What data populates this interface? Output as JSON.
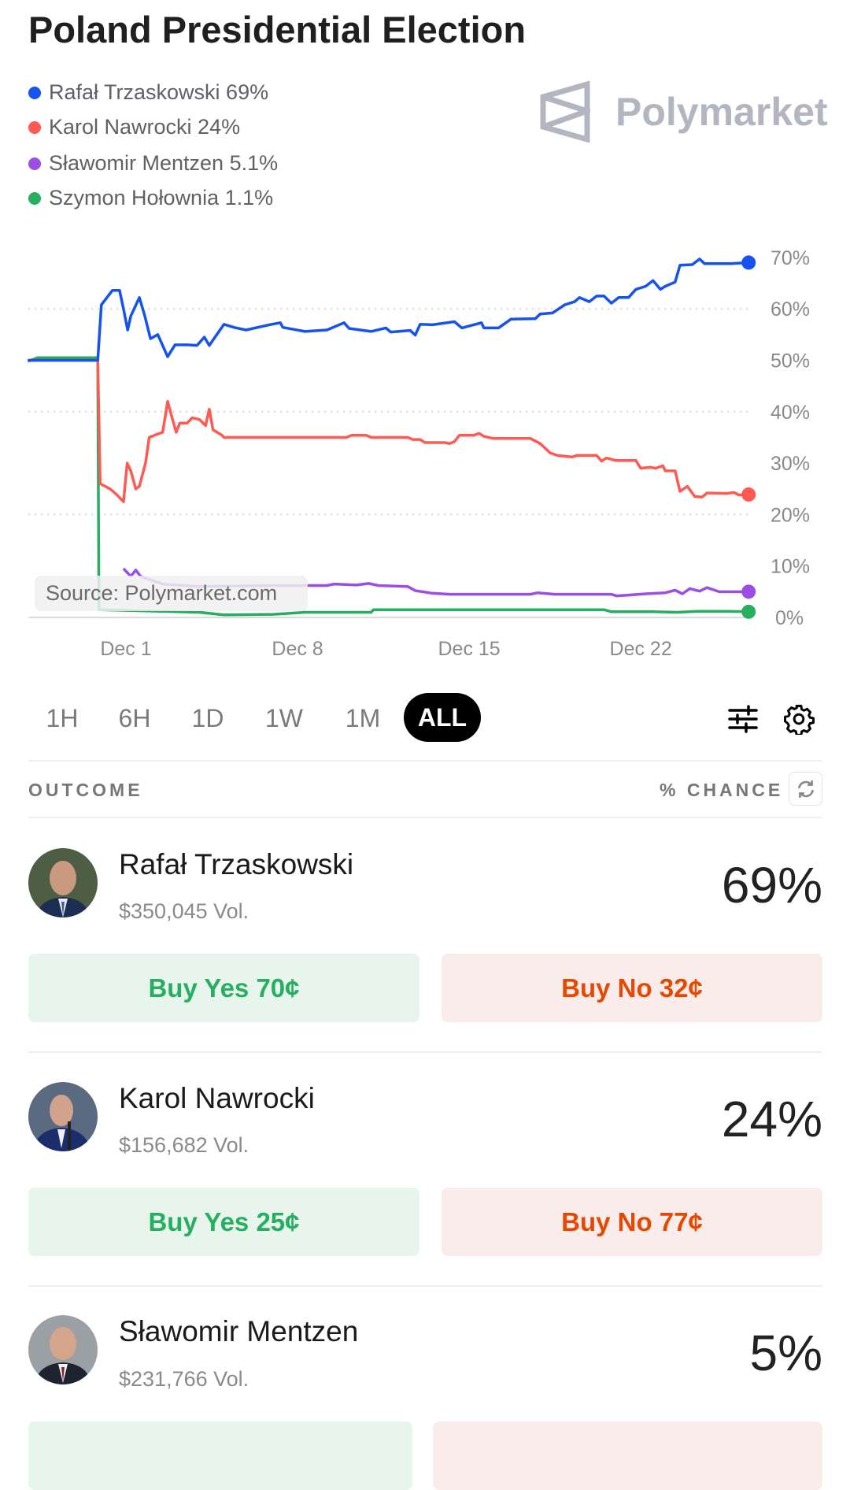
{
  "title": "Poland Presidential Election",
  "brand": "Polymarket",
  "source": "Source: Polymarket.com",
  "legend": [
    {
      "label": "Rafał Trzaskowski 69%",
      "color": "#1652f0"
    },
    {
      "label": "Karol Nawrocki 24%",
      "color": "#ff5952"
    },
    {
      "label": "Sławomir Mentzen 5.1%",
      "color": "#9b4ee6"
    },
    {
      "label": "Szymon Hołownia 1.1%",
      "color": "#27ae60"
    }
  ],
  "ranges": [
    "1H",
    "6H",
    "1D",
    "1W",
    "1M",
    "ALL"
  ],
  "active_range": "ALL",
  "table_header": {
    "outcome": "OUTCOME",
    "chance": "% CHANCE"
  },
  "outcomes": [
    {
      "name": "Rafał Trzaskowski",
      "volume": "$350,045 Vol.",
      "chance": "69%",
      "buy_yes": "Buy Yes 70¢",
      "buy_no": "Buy No 32¢"
    },
    {
      "name": "Karol Nawrocki",
      "volume": "$156,682 Vol.",
      "chance": "24%",
      "buy_yes": "Buy Yes 25¢",
      "buy_no": "Buy No 77¢"
    },
    {
      "name": "Sławomir Mentzen",
      "volume": "$231,766 Vol.",
      "chance": "5%",
      "buy_yes": "",
      "buy_no": ""
    }
  ],
  "chart_data": {
    "type": "line",
    "x_unit": "days relative to Dec 1",
    "xlim": [
      -4,
      25.5
    ],
    "ylim": [
      0,
      70
    ],
    "yticks": [
      "0%",
      "10%",
      "20%",
      "30%",
      "40%",
      "50%",
      "60%",
      "70%"
    ],
    "ytick_values": [
      0,
      10,
      20,
      30,
      40,
      50,
      60,
      70
    ],
    "xticks": [
      "Dec 1",
      "Dec 8",
      "Dec 15",
      "Dec 22"
    ],
    "xtick_values": [
      0,
      7,
      14,
      21
    ],
    "gridlines": [
      20,
      40,
      60
    ],
    "series": [
      {
        "name": "Rafał Trzaskowski",
        "color": "#1652f0",
        "points": [
          [
            -4,
            50
          ],
          [
            -1.15,
            50
          ],
          [
            -1.0,
            60.8
          ],
          [
            -0.55,
            63.6
          ],
          [
            -0.26,
            63.6
          ],
          [
            -0.1,
            60
          ],
          [
            0.07,
            55.9
          ],
          [
            0.2,
            58.6
          ],
          [
            0.55,
            62.2
          ],
          [
            0.77,
            58.6
          ],
          [
            1.0,
            54.2
          ],
          [
            1.3,
            55
          ],
          [
            1.7,
            50.7
          ],
          [
            2.0,
            53
          ],
          [
            2.5,
            53
          ],
          [
            2.9,
            52.9
          ],
          [
            3.2,
            54.5
          ],
          [
            3.4,
            52.9
          ],
          [
            4.0,
            57
          ],
          [
            4.4,
            56.4
          ],
          [
            4.9,
            55.9
          ],
          [
            5.85,
            56.9
          ],
          [
            6.3,
            57.3
          ],
          [
            6.4,
            56.4
          ],
          [
            7.3,
            55.6
          ],
          [
            8.2,
            55.9
          ],
          [
            8.9,
            57.3
          ],
          [
            9.1,
            56.2
          ],
          [
            10,
            55.6
          ],
          [
            10.6,
            56.3
          ],
          [
            10.8,
            55.5
          ],
          [
            11.6,
            55.8
          ],
          [
            11.8,
            54.9
          ],
          [
            12.0,
            57
          ],
          [
            12.5,
            56.9
          ],
          [
            13.4,
            57.5
          ],
          [
            13.7,
            56.3
          ],
          [
            14.5,
            57.3
          ],
          [
            14.6,
            56.3
          ],
          [
            15.2,
            56.3
          ],
          [
            15.7,
            58
          ],
          [
            16.7,
            58.1
          ],
          [
            16.9,
            59
          ],
          [
            17.4,
            59.2
          ],
          [
            17.9,
            60.8
          ],
          [
            18.3,
            61.4
          ],
          [
            18.5,
            62.2
          ],
          [
            18.9,
            61.4
          ],
          [
            19.2,
            62.5
          ],
          [
            19.5,
            62.5
          ],
          [
            19.8,
            61.1
          ],
          [
            20.1,
            62.2
          ],
          [
            20.5,
            62.2
          ],
          [
            20.8,
            63.8
          ],
          [
            21.2,
            64.4
          ],
          [
            21.5,
            65.5
          ],
          [
            21.8,
            63.8
          ],
          [
            22.0,
            64.4
          ],
          [
            22.4,
            65.2
          ],
          [
            22.6,
            68.5
          ],
          [
            23.1,
            68.6
          ],
          [
            23.4,
            69.7
          ],
          [
            23.6,
            68.8
          ],
          [
            24.7,
            68.8
          ],
          [
            25.4,
            69
          ]
        ]
      },
      {
        "name": "Karol Nawrocki",
        "color": "#ff5952",
        "points": [
          [
            -4,
            50
          ],
          [
            -1.15,
            50
          ],
          [
            -1.05,
            26
          ],
          [
            -0.85,
            25.5
          ],
          [
            -0.65,
            25
          ],
          [
            -0.4,
            24
          ],
          [
            -0.1,
            22.5
          ],
          [
            0.05,
            30
          ],
          [
            0.2,
            28.5
          ],
          [
            0.4,
            25
          ],
          [
            0.55,
            25.5
          ],
          [
            0.8,
            30
          ],
          [
            0.95,
            35
          ],
          [
            1.2,
            35.5
          ],
          [
            1.5,
            36
          ],
          [
            1.7,
            42
          ],
          [
            1.9,
            38.5
          ],
          [
            2.05,
            36
          ],
          [
            2.2,
            37.8
          ],
          [
            2.5,
            37.8
          ],
          [
            2.7,
            38.8
          ],
          [
            3.0,
            38.5
          ],
          [
            3.25,
            37.3
          ],
          [
            3.4,
            40.5
          ],
          [
            3.55,
            36.5
          ],
          [
            3.9,
            35.5
          ],
          [
            4.0,
            35
          ],
          [
            9.0,
            35
          ],
          [
            9.2,
            35.4
          ],
          [
            9.8,
            35.4
          ],
          [
            10,
            35
          ],
          [
            11.5,
            35
          ],
          [
            11.7,
            34.6
          ],
          [
            12.0,
            34.6
          ],
          [
            12.2,
            34
          ],
          [
            13.0,
            34
          ],
          [
            13.2,
            33.8
          ],
          [
            13.4,
            34.2
          ],
          [
            13.6,
            35.4
          ],
          [
            14.2,
            35.4
          ],
          [
            14.4,
            35.8
          ],
          [
            14.6,
            35.2
          ],
          [
            15.0,
            34.8
          ],
          [
            16.5,
            34.8
          ],
          [
            16.9,
            33.8
          ],
          [
            17.3,
            32
          ],
          [
            17.6,
            31.5
          ],
          [
            18.2,
            31.2
          ],
          [
            18.4,
            31.5
          ],
          [
            19.2,
            31.5
          ],
          [
            19.4,
            30.4
          ],
          [
            19.6,
            31
          ],
          [
            20.0,
            30.5
          ],
          [
            20.8,
            30.5
          ],
          [
            21.0,
            29
          ],
          [
            21.4,
            29.2
          ],
          [
            21.6,
            29
          ],
          [
            21.9,
            29.5
          ],
          [
            22.0,
            28.5
          ],
          [
            22.4,
            28.5
          ],
          [
            22.6,
            24.5
          ],
          [
            22.9,
            25.5
          ],
          [
            23.2,
            23.5
          ],
          [
            23.5,
            23.4
          ],
          [
            23.7,
            24.2
          ],
          [
            24.5,
            24.1
          ],
          [
            24.8,
            24.3
          ],
          [
            25.0,
            23.8
          ],
          [
            25.4,
            23.9
          ]
        ]
      },
      {
        "name": "Sławomir Mentzen",
        "color": "#9b4ee6",
        "points": [
          [
            -0.1,
            9.5
          ],
          [
            0.2,
            8
          ],
          [
            0.4,
            9.2
          ],
          [
            0.6,
            8
          ],
          [
            1.5,
            6.5
          ],
          [
            3,
            6
          ],
          [
            5.9,
            6.2
          ],
          [
            8.2,
            6.2
          ],
          [
            8.5,
            6.5
          ],
          [
            9.4,
            6.3
          ],
          [
            9.9,
            6.6
          ],
          [
            10.3,
            6.2
          ],
          [
            11.5,
            6.0
          ],
          [
            11.8,
            5.2
          ],
          [
            12.5,
            4.7
          ],
          [
            13.2,
            4.5
          ],
          [
            16.5,
            4.5
          ],
          [
            16.8,
            4.8
          ],
          [
            17.5,
            4.5
          ],
          [
            19.8,
            4.5
          ],
          [
            20.0,
            4.2
          ],
          [
            20.4,
            4.3
          ],
          [
            21.2,
            4.6
          ],
          [
            22.0,
            4.8
          ],
          [
            22.4,
            5.3
          ],
          [
            22.7,
            4.6
          ],
          [
            23.0,
            5.6
          ],
          [
            23.4,
            5.1
          ],
          [
            23.7,
            5.8
          ],
          [
            24.2,
            5.0
          ],
          [
            25.4,
            5.0
          ]
        ]
      },
      {
        "name": "Szymon Hołownia",
        "color": "#27ae60",
        "points": [
          [
            -4,
            49.8
          ],
          [
            -3.6,
            50.5
          ],
          [
            -1.15,
            50.5
          ],
          [
            -1.1,
            1.5
          ],
          [
            3,
            1
          ],
          [
            4,
            0.5
          ],
          [
            6,
            0.6
          ],
          [
            7.3,
            1.0
          ],
          [
            10,
            1.0
          ],
          [
            10.1,
            1.5
          ],
          [
            11.0,
            1.5
          ],
          [
            19.5,
            1.5
          ],
          [
            19.8,
            1.1
          ],
          [
            21.5,
            1.1
          ],
          [
            22.5,
            1.0
          ],
          [
            23.3,
            1.2
          ],
          [
            24.5,
            1.2
          ],
          [
            25.4,
            1.1
          ]
        ]
      }
    ]
  }
}
